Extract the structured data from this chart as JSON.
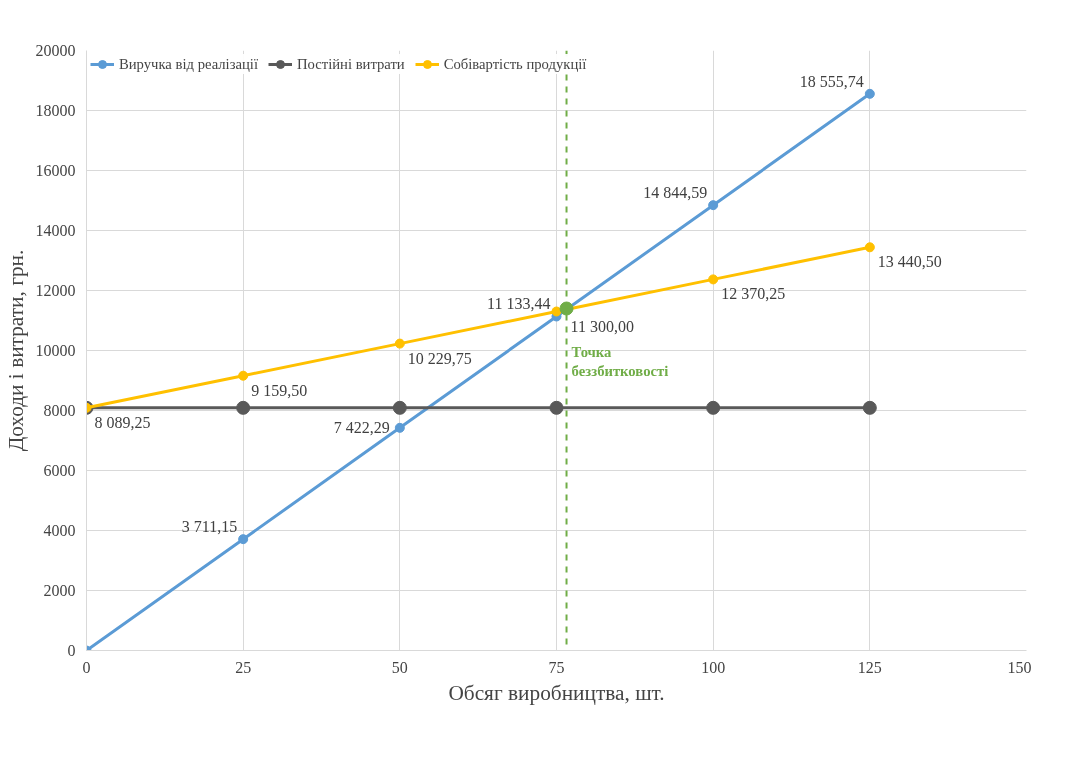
{
  "chart_data": {
    "type": "line",
    "xlabel": "Обсяг виробництва, шт.",
    "ylabel": "Доходи і витрати, грн.",
    "x": [
      0,
      25,
      50,
      75,
      100,
      125
    ],
    "xlim": [
      0,
      150
    ],
    "xticks": [
      0,
      25,
      50,
      75,
      100,
      125,
      150
    ],
    "ylim": [
      0,
      20000
    ],
    "yticks": [
      0,
      2000,
      4000,
      6000,
      8000,
      10000,
      12000,
      14000,
      16000,
      18000,
      20000
    ],
    "grid": true,
    "legend": "top",
    "marker": "circle",
    "line_style": "solid",
    "series": [
      {
        "name": "Виручка від реалізації",
        "color": "#5b9bd5",
        "values": [
          0,
          3711.15,
          7422.29,
          11133.44,
          14844.59,
          18555.74
        ],
        "value_labels": [
          null,
          "3 711,15",
          "7 422,29",
          "11 133,44",
          "14 844,59",
          "18 555,74"
        ]
      },
      {
        "name": "Постійні витрати",
        "color": "#595959",
        "values": [
          8089.25,
          8089.25,
          8089.25,
          8089.25,
          8089.25,
          8089.25
        ]
      },
      {
        "name": "Собівартість продукції",
        "color": "#ffc000",
        "values": [
          8089.25,
          9159.5,
          10229.75,
          11300.0,
          12370.25,
          13440.5
        ],
        "value_labels": [
          "8 089,25",
          "9 159,50",
          "10 229,75",
          "11 300,00",
          "12 370,25",
          "13 440,50"
        ]
      },
      {
        "type": "scatter",
        "color": "#70ad47",
        "x": [
          76.6
        ],
        "values": [
          11400
        ]
      }
    ],
    "ref_lines": [
      {
        "axis": "x",
        "value": 76.6,
        "label": "Точка беззбитковості",
        "color": "#70ad47",
        "line_style": "dashed"
      }
    ]
  }
}
